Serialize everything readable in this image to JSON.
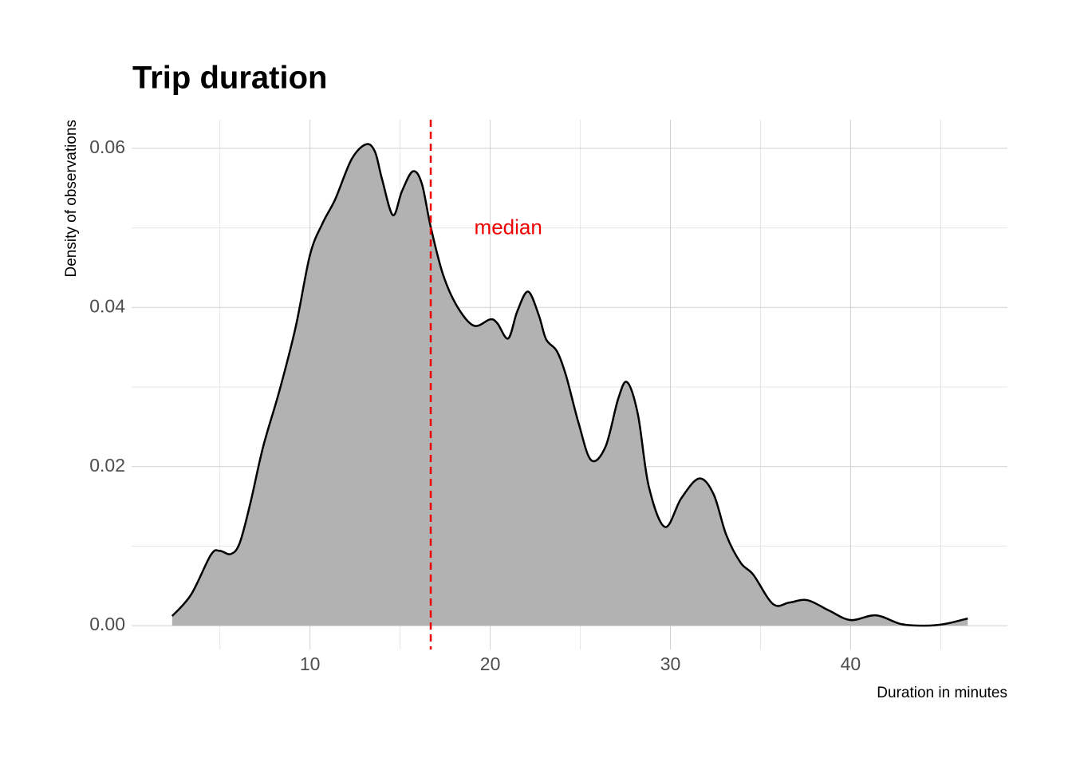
{
  "chart_data": {
    "type": "density",
    "title": "Trip duration",
    "x_label": "Duration in minutes",
    "y_label": "Density of observations",
    "x": [
      2.35,
      3.4,
      4.5,
      5.0,
      5.6,
      6.1,
      6.7,
      7.4,
      8.3,
      9.2,
      10.0,
      10.7,
      11.4,
      12.3,
      13.1,
      13.6,
      14.0,
      14.6,
      15.1,
      15.7,
      16.2,
      16.7,
      17.4,
      18.2,
      19.1,
      20.0,
      20.4,
      21.0,
      21.5,
      22.1,
      22.7,
      23.1,
      23.7,
      24.2,
      24.9,
      25.6,
      26.4,
      27.1,
      27.6,
      28.2,
      28.8,
      29.7,
      30.6,
      31.6,
      32.4,
      33.1,
      33.9,
      34.6,
      35.7,
      36.6,
      37.6,
      38.8,
      40.0,
      41.4,
      42.8,
      44.1,
      45.2,
      46.5
    ],
    "values": [
      0.0012,
      0.0039,
      0.0089,
      0.0094,
      0.009,
      0.0104,
      0.0155,
      0.0225,
      0.0295,
      0.0375,
      0.0466,
      0.0506,
      0.0536,
      0.0586,
      0.0605,
      0.0596,
      0.0561,
      0.0516,
      0.0546,
      0.0571,
      0.0556,
      0.0501,
      0.044,
      0.04,
      0.0377,
      0.0385,
      0.038,
      0.0361,
      0.0395,
      0.042,
      0.039,
      0.036,
      0.0345,
      0.0315,
      0.0255,
      0.0208,
      0.0225,
      0.0285,
      0.0306,
      0.0265,
      0.0175,
      0.0124,
      0.016,
      0.0185,
      0.0165,
      0.0114,
      0.0079,
      0.0064,
      0.0027,
      0.0029,
      0.0032,
      0.0019,
      0.0007,
      0.0013,
      0.0002,
      0.0,
      0.0002,
      0.0009
    ],
    "fill": "#b2b2b2",
    "line_color": "#000000",
    "median": 16.7,
    "median_color": "#ee0000",
    "annotation": {
      "text": "median",
      "x": 21.0,
      "y": 0.0499,
      "color": "#ee0000"
    },
    "xlim": [
      0.1,
      48.7
    ],
    "ylim": [
      -0.003,
      0.0636
    ],
    "xticks": [
      10,
      20,
      30,
      40
    ],
    "xticks_minor": [
      5,
      15,
      25,
      35,
      45
    ],
    "yticks": [
      {
        "value": 0,
        "label": "0.00"
      },
      {
        "value": 0.02,
        "label": "0.02"
      },
      {
        "value": 0.04,
        "label": "0.04"
      },
      {
        "value": 0.06,
        "label": "0.06"
      }
    ],
    "yticks_minor": [
      0.01,
      0.03,
      0.05
    ],
    "grid": true
  }
}
